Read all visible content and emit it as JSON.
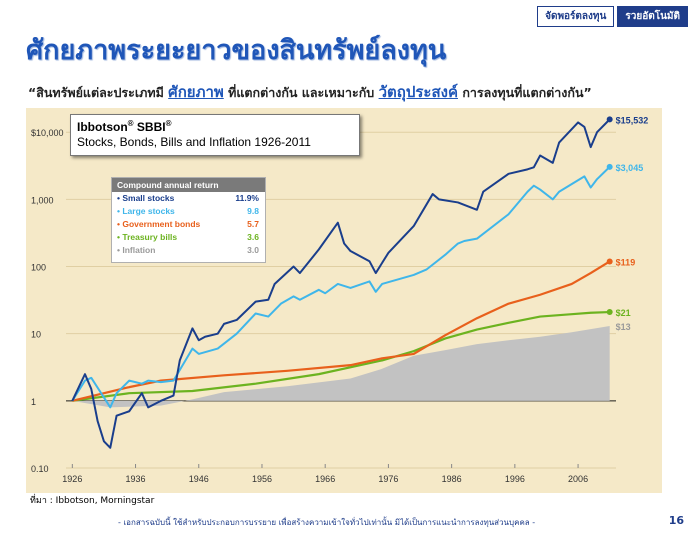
{
  "header": {
    "tab_1": "จัดพอร์ตลงทุน",
    "tab_2": "รวยอัตโนมัติ",
    "title": "ศักยภาพระยะยาวของสินทรัพย์ลงทุน",
    "subtitle_pre": "“สินทรัพย์แต่ละประเภทมี ",
    "subtitle_hl1": "ศักยภาพ",
    "subtitle_mid": " ที่แตกต่างกัน และเหมาะกับ ",
    "subtitle_hl2": "วัตถุประสงค์",
    "subtitle_post": " การลงทุนที่แตกต่างกัน”"
  },
  "colors": {
    "title": "#1f56b8",
    "small_stocks": "#1a3e8c",
    "large_stocks": "#3fb6ea",
    "government_bonds": "#e8601c",
    "treasury_bills": "#6cb320",
    "inflation": "#b8b8b8",
    "background": "#f5e9c8"
  },
  "chart_data": {
    "type": "line",
    "title": "Ibbotson® SBBI®",
    "subtitle": "Stocks, Bonds, Bills and Inflation 1926-2011",
    "y_scale": "log",
    "ylim": [
      0.1,
      20000
    ],
    "xlim": [
      1925,
      2012
    ],
    "x_ticks": [
      "1926",
      "1936",
      "1946",
      "1956",
      "1966",
      "1976",
      "1986",
      "1996",
      "2006"
    ],
    "y_ticks": [
      "0.10",
      "1",
      "10",
      "100",
      "1,000",
      "$10,000"
    ],
    "legend_title": "Compound annual return",
    "series": [
      {
        "name": "Small stocks",
        "rate": "11.9%",
        "end_label": "$15,532",
        "x": [
          1926,
          1928,
          1929,
          1930,
          1931,
          1932,
          1933,
          1935,
          1937,
          1938,
          1940,
          1942,
          1943,
          1945,
          1946,
          1947,
          1949,
          1950,
          1952,
          1955,
          1957,
          1958,
          1961,
          1962,
          1965,
          1968,
          1969,
          1970,
          1973,
          1974,
          1976,
          1980,
          1983,
          1984,
          1987,
          1990,
          1991,
          1995,
          1998,
          1999,
          2000,
          2002,
          2003,
          2006,
          2007,
          2008,
          2009,
          2011
        ],
        "values": [
          1,
          2.5,
          1.5,
          0.5,
          0.25,
          0.2,
          0.6,
          0.7,
          1.3,
          0.8,
          1,
          1.2,
          4,
          12,
          8,
          9,
          10,
          14,
          16,
          30,
          32,
          55,
          100,
          80,
          180,
          450,
          220,
          170,
          120,
          80,
          160,
          400,
          1200,
          1000,
          900,
          700,
          1300,
          2400,
          2800,
          3000,
          4500,
          3500,
          7000,
          14000,
          12000,
          6000,
          10000,
          15532
        ]
      },
      {
        "name": "Large stocks",
        "rate": "9.8",
        "end_label": "$3,045",
        "x": [
          1926,
          1928,
          1929,
          1932,
          1933,
          1935,
          1937,
          1938,
          1940,
          1942,
          1945,
          1946,
          1949,
          1952,
          1955,
          1957,
          1959,
          1961,
          1962,
          1965,
          1966,
          1968,
          1970,
          1973,
          1974,
          1975,
          1980,
          1982,
          1985,
          1987,
          1988,
          1990,
          1995,
          1998,
          1999,
          2000,
          2002,
          2003,
          2007,
          2008,
          2009,
          2011
        ],
        "values": [
          1,
          2,
          2.2,
          0.8,
          1.3,
          2,
          1.8,
          2,
          1.9,
          2,
          6,
          5,
          6,
          10,
          20,
          18,
          28,
          36,
          32,
          45,
          40,
          55,
          48,
          60,
          42,
          55,
          75,
          90,
          150,
          220,
          240,
          260,
          600,
          1300,
          1600,
          1400,
          1000,
          1300,
          2200,
          1500,
          2000,
          3045
        ]
      },
      {
        "name": "Government bonds",
        "rate": "5.7",
        "end_label": "$119",
        "x": [
          1926,
          1935,
          1940,
          1950,
          1960,
          1970,
          1975,
          1980,
          1985,
          1990,
          1995,
          2000,
          2005,
          2008,
          2011
        ],
        "values": [
          1,
          1.6,
          2,
          2.4,
          2.8,
          3.4,
          4.3,
          5,
          9.5,
          17,
          28,
          38,
          55,
          80,
          119
        ]
      },
      {
        "name": "Treasury bills",
        "rate": "3.6",
        "end_label": "$21",
        "x": [
          1926,
          1935,
          1945,
          1955,
          1965,
          1975,
          1980,
          1985,
          1990,
          1995,
          2000,
          2005,
          2008,
          2011
        ],
        "values": [
          1,
          1.3,
          1.4,
          1.8,
          2.5,
          4,
          5.5,
          8.5,
          11.5,
          14.5,
          18,
          19.5,
          20.5,
          21
        ]
      },
      {
        "name": "Inflation",
        "rate": "3.0",
        "end_label": "$13",
        "x": [
          1926,
          1932,
          1940,
          1945,
          1950,
          1960,
          1970,
          1975,
          1980,
          1985,
          1990,
          1995,
          2000,
          2005,
          2011
        ],
        "values": [
          1,
          0.8,
          0.85,
          1.05,
          1.35,
          1.65,
          2.15,
          3,
          4.7,
          5.7,
          7,
          8,
          9,
          10.5,
          13
        ]
      }
    ]
  },
  "footer": {
    "source": "ที่มา : Ibbotson, Morningstar",
    "note": "- เอกสารฉบับนี้ ใช้สำหรับประกอบการบรรยาย เพื่อสร้างความเข้าใจทั่วไปเท่านั้น มิได้เป็นการแนะนำการลงทุนส่วนบุคคล -",
    "page": "16"
  }
}
